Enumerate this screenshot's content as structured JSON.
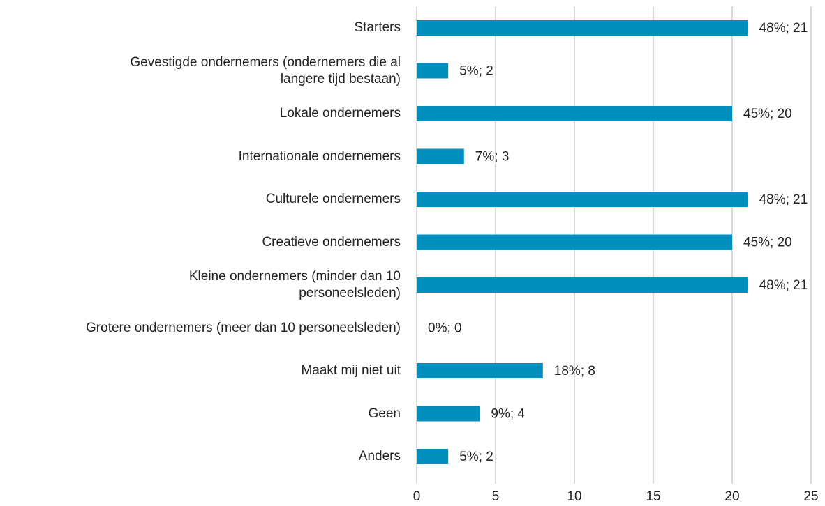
{
  "chart_data": {
    "type": "barh",
    "categories": [
      "Starters",
      "Gevestigde ondernemers (ondernemers die al\nlangere tijd bestaan)",
      "Lokale ondernemers",
      "Internationale ondernemers",
      "Culturele ondernemers",
      "Creatieve ondernemers",
      "Kleine ondernemers (minder dan 10\npersoneelsleden)",
      "Grotere ondernemers (meer dan 10 personeelsleden)",
      "Maakt mij niet uit",
      "Geen",
      "Anders"
    ],
    "values": [
      21,
      2,
      20,
      3,
      21,
      20,
      21,
      0,
      8,
      4,
      2
    ],
    "value_labels": [
      "48%; 21",
      "5%; 2",
      "45%; 20",
      "7%; 3",
      "48%; 21",
      "45%; 20",
      "48%; 21",
      "0%; 0",
      "18%; 8",
      "9%; 4",
      "5%; 2"
    ],
    "color": "#0090c0",
    "xlim": [
      0,
      25
    ],
    "xticks": [
      0,
      5,
      10,
      15,
      20,
      25
    ],
    "grid": true
  }
}
